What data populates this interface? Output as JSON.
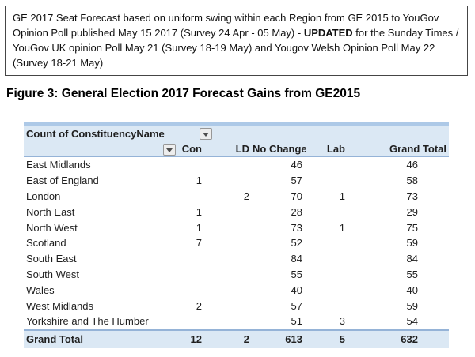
{
  "note": {
    "text_before": "GE 2017 Seat Forecast based on uniform swing within each Region from GE 2015 to YouGov Opinion Poll published May 15 2017 (Survey 24 Apr - 05 May) -  ",
    "text_bold": "UPDATED",
    "text_after": " for the Sunday Times / YouGov UK opinion Poll May 21 (Survey 18-19 May) and Yougov Welsh Opinion Poll May 22 (Survey 18-21 May)"
  },
  "figure_title": "Figure 3: General Election 2017 Forecast Gains from GE2015",
  "pivot": {
    "title": "Count of ConstituencyName",
    "column_filter_icon": "dropdown-arrow-icon",
    "row_filter_icon": "dropdown-arrow-icon",
    "columns": [
      "Con",
      "LD",
      "No Change",
      "Lab",
      "Grand Total"
    ],
    "rows": [
      {
        "region": "East Midlands",
        "values": [
          "",
          "",
          "46",
          "",
          "46"
        ]
      },
      {
        "region": "East of England",
        "values": [
          "1",
          "",
          "57",
          "",
          "58"
        ]
      },
      {
        "region": "London",
        "values": [
          "",
          "2",
          "70",
          "1",
          "73"
        ]
      },
      {
        "region": "North East",
        "values": [
          "1",
          "",
          "28",
          "",
          "29"
        ]
      },
      {
        "region": "North West",
        "values": [
          "1",
          "",
          "73",
          "1",
          "75"
        ]
      },
      {
        "region": "Scotland",
        "values": [
          "7",
          "",
          "52",
          "",
          "59"
        ]
      },
      {
        "region": "South East",
        "values": [
          "",
          "",
          "84",
          "",
          "84"
        ]
      },
      {
        "region": "South West",
        "values": [
          "",
          "",
          "55",
          "",
          "55"
        ]
      },
      {
        "region": "Wales",
        "values": [
          "",
          "",
          "40",
          "",
          "40"
        ]
      },
      {
        "region": "West Midlands",
        "values": [
          "2",
          "",
          "57",
          "",
          "59"
        ]
      },
      {
        "region": "Yorkshire and The Humber",
        "values": [
          "",
          "",
          "51",
          "3",
          "54"
        ]
      }
    ],
    "grand_total": {
      "label": "Grand Total",
      "values": [
        "12",
        "2",
        "613",
        "5",
        "632"
      ]
    }
  },
  "colors": {
    "header_bg": "#DBE8F4",
    "top_strip": "#ADC9E7",
    "border_blue": "#95B3D7",
    "text": "#1a1a1a"
  }
}
